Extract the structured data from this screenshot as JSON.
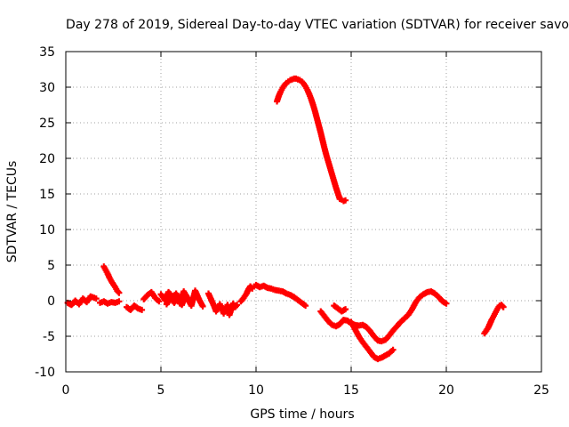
{
  "chart_data": {
    "type": "scatter",
    "title": "Day 278 of 2019, Sidereal Day-to-day VTEC variation (SDTVAR) for receiver savo",
    "xlabel": "GPS time / hours",
    "ylabel": "SDTVAR / TECUs",
    "xlim": [
      0,
      25
    ],
    "ylim": [
      -10,
      35
    ],
    "xticks": [
      0,
      5,
      10,
      15,
      20,
      25
    ],
    "yticks": [
      -10,
      -5,
      0,
      5,
      10,
      15,
      20,
      25,
      30,
      35
    ],
    "grid": true,
    "marker": "+",
    "series": [
      {
        "name": "SDTVAR",
        "color": "#ff0000",
        "segments": [
          {
            "x": [
              0.1,
              0.3,
              0.5,
              0.7,
              0.9,
              1.1,
              1.3,
              1.5,
              1.6
            ],
            "y": [
              -0.3,
              -0.6,
              0.0,
              -0.5,
              0.3,
              -0.2,
              0.6,
              0.4,
              0.3
            ]
          },
          {
            "x": [
              2.0,
              2.1,
              2.2,
              2.3,
              2.4,
              2.5,
              2.6,
              2.7,
              2.8
            ],
            "y": [
              4.8,
              4.3,
              3.8,
              3.2,
              2.7,
              2.3,
              1.9,
              1.4,
              1.1
            ]
          },
          {
            "x": [
              1.8,
              2.0,
              2.2,
              2.4,
              2.6,
              2.8
            ],
            "y": [
              -0.3,
              -0.1,
              -0.4,
              -0.2,
              -0.3,
              -0.1
            ]
          },
          {
            "x": [
              3.2,
              3.4,
              3.6,
              3.8,
              4.0
            ],
            "y": [
              -0.9,
              -1.3,
              -0.7,
              -1.1,
              -1.3
            ]
          },
          {
            "x": [
              4.1,
              4.3,
              4.5,
              4.7,
              4.9
            ],
            "y": [
              0.2,
              0.8,
              1.2,
              0.4,
              -0.1
            ]
          },
          {
            "x": [
              5.0,
              5.2,
              5.4,
              5.6,
              5.8,
              6.0,
              6.2,
              6.4,
              6.6,
              6.8,
              7.0,
              7.2
            ],
            "y": [
              0.9,
              0.1,
              1.2,
              0.5,
              1.0,
              -0.4,
              1.3,
              0.3,
              -0.7,
              1.4,
              0.2,
              -0.8
            ]
          },
          {
            "x": [
              5.3,
              5.5,
              5.7,
              5.9,
              6.1,
              6.3,
              6.5
            ],
            "y": [
              -0.5,
              0.4,
              -0.3,
              0.6,
              -0.6,
              0.8,
              0.0
            ]
          },
          {
            "x": [
              7.5,
              7.6,
              7.7,
              7.8,
              7.9,
              8.0,
              8.1,
              8.2,
              8.3,
              8.4,
              8.5,
              8.6,
              8.7,
              8.8,
              8.9,
              9.0
            ],
            "y": [
              1.0,
              0.4,
              -0.2,
              -0.8,
              -1.5,
              -1.1,
              -0.5,
              -1.0,
              -1.8,
              -1.3,
              -0.6,
              -2.0,
              -1.2,
              -0.4,
              -0.9,
              -0.6
            ]
          },
          {
            "x": [
              9.2,
              9.3,
              9.4,
              9.5,
              9.6,
              9.7,
              9.8
            ],
            "y": [
              -0.1,
              0.2,
              0.6,
              1.0,
              1.6,
              2.0,
              1.7
            ]
          },
          {
            "x": [
              9.9,
              10.0,
              10.2,
              10.4,
              10.6,
              10.8,
              11.0,
              11.2,
              11.4,
              11.6,
              11.8,
              12.0,
              12.2,
              12.4,
              12.6
            ],
            "y": [
              2.0,
              2.2,
              1.9,
              2.1,
              1.8,
              1.7,
              1.5,
              1.4,
              1.3,
              1.0,
              0.8,
              0.5,
              0.1,
              -0.3,
              -0.7
            ]
          },
          {
            "x": [
              11.1,
              11.2,
              11.3,
              11.4,
              11.5,
              11.6,
              11.7,
              11.8,
              11.9,
              12.0,
              12.1,
              12.2,
              12.3,
              12.4,
              12.5,
              12.6,
              12.7,
              12.8,
              12.9,
              13.0,
              13.1,
              13.2,
              13.3,
              13.4,
              13.5,
              13.6,
              13.7,
              13.8,
              13.9,
              14.0,
              14.1,
              14.2,
              14.3,
              14.4,
              14.5,
              14.6,
              14.7
            ],
            "y": [
              28.0,
              28.8,
              29.4,
              29.9,
              30.3,
              30.6,
              30.8,
              31.0,
              31.1,
              31.2,
              31.2,
              31.1,
              31.0,
              30.8,
              30.5,
              30.1,
              29.6,
              29.0,
              28.3,
              27.5,
              26.6,
              25.6,
              24.6,
              23.6,
              22.5,
              21.4,
              20.4,
              19.5,
              18.6,
              17.7,
              16.8,
              15.9,
              15.1,
              14.3,
              14.2,
              14.0,
              14.1
            ]
          },
          {
            "x": [
              13.4,
              13.6,
              13.8,
              14.0,
              14.2,
              14.4,
              14.6,
              14.8,
              15.0,
              15.2,
              15.4,
              15.6,
              15.8,
              16.0,
              16.2,
              16.4,
              16.6,
              16.8,
              17.0,
              17.2,
              17.4,
              17.6,
              17.8,
              18.0,
              18.2,
              18.4,
              18.6,
              18.8,
              19.0,
              19.2,
              19.4,
              19.6,
              19.8,
              20.0
            ],
            "y": [
              -1.5,
              -2.2,
              -2.9,
              -3.4,
              -3.6,
              -3.3,
              -2.7,
              -2.8,
              -3.2,
              -3.4,
              -3.5,
              -3.4,
              -3.7,
              -4.3,
              -5.0,
              -5.6,
              -5.7,
              -5.5,
              -4.9,
              -4.2,
              -3.6,
              -3.0,
              -2.5,
              -2.0,
              -1.2,
              -0.2,
              0.5,
              0.9,
              1.2,
              1.3,
              1.0,
              0.5,
              -0.1,
              -0.4
            ]
          },
          {
            "x": [
              14.1,
              14.3,
              14.5,
              14.7
            ],
            "y": [
              -0.7,
              -1.1,
              -1.5,
              -1.2
            ]
          },
          {
            "x": [
              15.0,
              15.2,
              15.4,
              15.6,
              15.8,
              16.0,
              16.2,
              16.4,
              16.6,
              16.8,
              17.0,
              17.2
            ],
            "y": [
              -3.0,
              -4.0,
              -5.0,
              -5.8,
              -6.5,
              -7.2,
              -7.9,
              -8.2,
              -8.0,
              -7.7,
              -7.4,
              -6.9
            ]
          },
          {
            "x": [
              22.0,
              22.1,
              22.2,
              22.3,
              22.4,
              22.5,
              22.6,
              22.7,
              22.8,
              22.9,
              23.0
            ],
            "y": [
              -4.6,
              -4.2,
              -3.8,
              -3.2,
              -2.6,
              -2.1,
              -1.6,
              -1.1,
              -0.7,
              -0.6,
              -0.9
            ]
          }
        ]
      }
    ]
  }
}
